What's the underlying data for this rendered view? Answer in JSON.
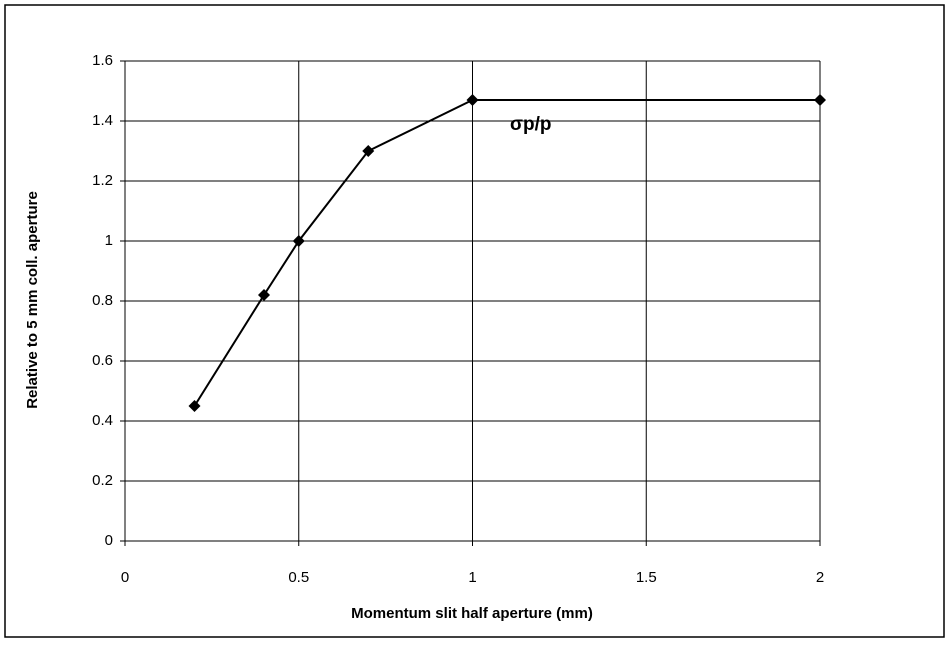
{
  "chart_data": {
    "type": "line",
    "xlabel": "Momentum slit half aperture (mm)",
    "ylabel": "Relative to 5 mm coll. aperture",
    "annotation": "σp/p",
    "x": [
      0.2,
      0.4,
      0.5,
      0.7,
      1.0,
      2.0
    ],
    "series": [
      {
        "color": "#000000",
        "values": [
          0.45,
          0.82,
          1.0,
          1.3,
          1.47,
          1.47
        ]
      }
    ],
    "xlim": [
      0,
      2
    ],
    "xticks": [
      0,
      0.5,
      1,
      1.5,
      2
    ],
    "ylim": [
      0,
      1.6
    ],
    "yticks": [
      0,
      0.2,
      0.4,
      0.6,
      0.8,
      1,
      1.2,
      1.4,
      1.6
    ],
    "grid": true
  }
}
